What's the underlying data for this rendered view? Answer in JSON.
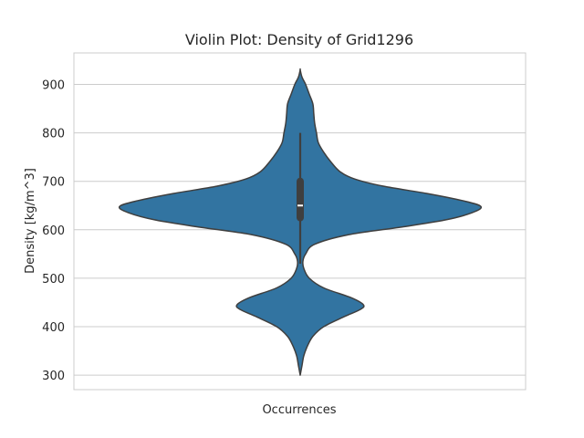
{
  "chart_data": {
    "type": "violin",
    "title": "Violin Plot: Density of Grid1296",
    "xlabel": "Occurrences",
    "ylabel": "Density [kg/m^3]",
    "ylim": [
      270,
      965
    ],
    "yticks": [
      300,
      400,
      500,
      600,
      700,
      800,
      900
    ],
    "grid": true,
    "color": "#3274a1",
    "outline_color": "#3f3f3f",
    "grid_color": "#cccccc",
    "min": 300,
    "max": 930,
    "whisker_low": 530,
    "whisker_high": 800,
    "q1": 625,
    "median": 650,
    "q3": 700,
    "density_profile": [
      {
        "y": 300,
        "w": 0.0
      },
      {
        "y": 320,
        "w": 0.01
      },
      {
        "y": 340,
        "w": 0.02
      },
      {
        "y": 360,
        "w": 0.04
      },
      {
        "y": 380,
        "w": 0.07
      },
      {
        "y": 400,
        "w": 0.13
      },
      {
        "y": 420,
        "w": 0.24
      },
      {
        "y": 435,
        "w": 0.33
      },
      {
        "y": 445,
        "w": 0.35
      },
      {
        "y": 460,
        "w": 0.28
      },
      {
        "y": 480,
        "w": 0.13
      },
      {
        "y": 500,
        "w": 0.05
      },
      {
        "y": 520,
        "w": 0.02
      },
      {
        "y": 535,
        "w": 0.015
      },
      {
        "y": 550,
        "w": 0.03
      },
      {
        "y": 570,
        "w": 0.08
      },
      {
        "y": 590,
        "w": 0.27
      },
      {
        "y": 605,
        "w": 0.55
      },
      {
        "y": 620,
        "w": 0.8
      },
      {
        "y": 635,
        "w": 0.95
      },
      {
        "y": 648,
        "w": 1.0
      },
      {
        "y": 660,
        "w": 0.9
      },
      {
        "y": 675,
        "w": 0.7
      },
      {
        "y": 690,
        "w": 0.46
      },
      {
        "y": 705,
        "w": 0.3
      },
      {
        "y": 720,
        "w": 0.22
      },
      {
        "y": 740,
        "w": 0.17
      },
      {
        "y": 760,
        "w": 0.13
      },
      {
        "y": 780,
        "w": 0.1
      },
      {
        "y": 800,
        "w": 0.09
      },
      {
        "y": 820,
        "w": 0.08
      },
      {
        "y": 840,
        "w": 0.075
      },
      {
        "y": 860,
        "w": 0.07
      },
      {
        "y": 880,
        "w": 0.05
      },
      {
        "y": 900,
        "w": 0.03
      },
      {
        "y": 915,
        "w": 0.01
      },
      {
        "y": 930,
        "w": 0.0
      }
    ]
  }
}
